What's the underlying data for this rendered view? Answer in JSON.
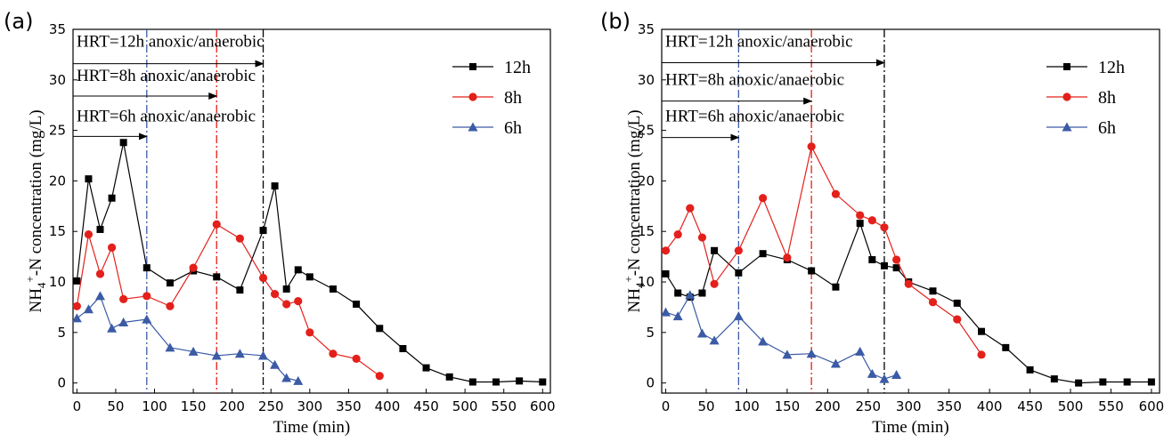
{
  "chart_data": [
    {
      "panel": "(a)",
      "type": "line",
      "xlabel": "Time (min)",
      "ylabel_base": "NH",
      "ylabel_sub": "4",
      "ylabel_sup": "+",
      "ylabel_rest": "-N concentration  (mg/L)",
      "xlim": [
        -5,
        610
      ],
      "ylim": [
        -1,
        35
      ],
      "xticks": [
        0,
        50,
        100,
        150,
        200,
        250,
        300,
        350,
        400,
        450,
        500,
        550,
        600
      ],
      "yticks": [
        0,
        5,
        10,
        15,
        20,
        25,
        30,
        35
      ],
      "series": [
        {
          "name": "12h",
          "color": "#000000",
          "marker": "square",
          "x": [
            0,
            15,
            30,
            45,
            60,
            90,
            120,
            150,
            180,
            210,
            240,
            255,
            270,
            285,
            300,
            330,
            360,
            390,
            420,
            450,
            480,
            510,
            540,
            570,
            600
          ],
          "y": [
            10.1,
            20.2,
            15.2,
            18.3,
            23.8,
            11.4,
            9.9,
            11.1,
            10.5,
            9.2,
            15.1,
            19.5,
            9.3,
            11.2,
            10.5,
            9.3,
            7.8,
            5.4,
            3.4,
            1.5,
            0.6,
            0.1,
            0.1,
            0.2,
            0.1
          ]
        },
        {
          "name": "8h",
          "color": "#e3201b",
          "marker": "circle",
          "x": [
            0,
            15,
            30,
            45,
            60,
            90,
            120,
            150,
            180,
            210,
            240,
            255,
            270,
            285,
            300,
            330,
            360,
            390
          ],
          "y": [
            7.6,
            14.7,
            10.8,
            13.4,
            8.3,
            8.6,
            7.6,
            11.4,
            15.7,
            14.3,
            10.4,
            8.8,
            7.8,
            8.1,
            5.0,
            2.9,
            2.4,
            0.7
          ]
        },
        {
          "name": "6h",
          "color": "#3b5ba5",
          "marker": "triangle",
          "x": [
            0,
            15,
            30,
            45,
            60,
            90,
            120,
            150,
            180,
            210,
            240,
            255,
            270,
            285
          ],
          "y": [
            6.4,
            7.3,
            8.6,
            5.4,
            6.0,
            6.3,
            3.5,
            3.1,
            2.7,
            2.9,
            2.7,
            1.8,
            0.5,
            0.2
          ]
        }
      ],
      "vlines": [
        {
          "x": 90,
          "color": "#3b5ba5"
        },
        {
          "x": 180,
          "color": "#e3201b"
        },
        {
          "x": 240,
          "color": "#000000"
        }
      ],
      "annotations": [
        {
          "text": "HRT=12h  anoxic/anaerobic",
          "y_text": 33.3,
          "y_arrow": 31.6,
          "x_end": 240
        },
        {
          "text": "HRT=8h anoxic/anaerobic",
          "y_text": 29.9,
          "y_arrow": 28.4,
          "x_end": 180
        },
        {
          "text": "HRT=6h anoxic/anaerobic",
          "y_text": 25.9,
          "y_arrow": 24.4,
          "x_end": 90
        }
      ]
    },
    {
      "panel": "(b)",
      "type": "line",
      "xlabel": "Time (min)",
      "ylabel_base": "NH",
      "ylabel_sub": "4",
      "ylabel_sup": "+",
      "ylabel_rest": "-N concentration  (mg/L)",
      "xlim": [
        -5,
        610
      ],
      "ylim": [
        -1,
        35
      ],
      "xticks": [
        0,
        50,
        100,
        150,
        200,
        250,
        300,
        350,
        400,
        450,
        500,
        550,
        600
      ],
      "yticks": [
        0,
        5,
        10,
        15,
        20,
        25,
        30,
        35
      ],
      "series": [
        {
          "name": "12h",
          "color": "#000000",
          "marker": "square",
          "x": [
            0,
            15,
            30,
            45,
            60,
            90,
            120,
            150,
            180,
            210,
            240,
            255,
            270,
            285,
            300,
            330,
            360,
            390,
            420,
            450,
            480,
            510,
            540,
            570,
            600
          ],
          "y": [
            10.8,
            8.9,
            8.5,
            8.9,
            13.1,
            10.9,
            12.8,
            12.2,
            11.1,
            9.5,
            15.8,
            12.2,
            11.6,
            11.4,
            10.0,
            9.1,
            7.9,
            5.1,
            3.5,
            1.3,
            0.4,
            0.0,
            0.1,
            0.1,
            0.1
          ]
        },
        {
          "name": "8h",
          "color": "#e3201b",
          "marker": "circle",
          "x": [
            0,
            15,
            30,
            45,
            60,
            90,
            120,
            150,
            180,
            210,
            240,
            255,
            270,
            285,
            300,
            330,
            360,
            390
          ],
          "y": [
            13.1,
            14.7,
            17.3,
            14.4,
            9.8,
            13.1,
            18.3,
            12.4,
            23.4,
            18.7,
            16.6,
            16.1,
            15.4,
            12.2,
            9.8,
            8.0,
            6.3,
            2.8
          ]
        },
        {
          "name": "6h",
          "color": "#3b5ba5",
          "marker": "triangle",
          "x": [
            0,
            15,
            30,
            45,
            60,
            90,
            120,
            150,
            180,
            210,
            240,
            255,
            270,
            285
          ],
          "y": [
            7.0,
            6.6,
            8.7,
            4.9,
            4.2,
            6.6,
            4.1,
            2.8,
            2.9,
            1.9,
            3.1,
            0.9,
            0.4,
            0.8
          ]
        }
      ],
      "vlines": [
        {
          "x": 90,
          "color": "#3b5ba5"
        },
        {
          "x": 180,
          "color": "#e3201b"
        },
        {
          "x": 270,
          "color": "#000000"
        }
      ],
      "annotations": [
        {
          "text": "HRT=12h anoxic/anaerobic",
          "y_text": 33.3,
          "y_arrow": 31.7,
          "x_end": 270
        },
        {
          "text": "HRT=8h anoxic/anaerobic",
          "y_text": 29.5,
          "y_arrow": 27.9,
          "x_end": 180
        },
        {
          "text": "HRT=6h anoxic/anaerobic",
          "y_text": 25.9,
          "y_arrow": 24.3,
          "x_end": 90
        }
      ]
    }
  ]
}
